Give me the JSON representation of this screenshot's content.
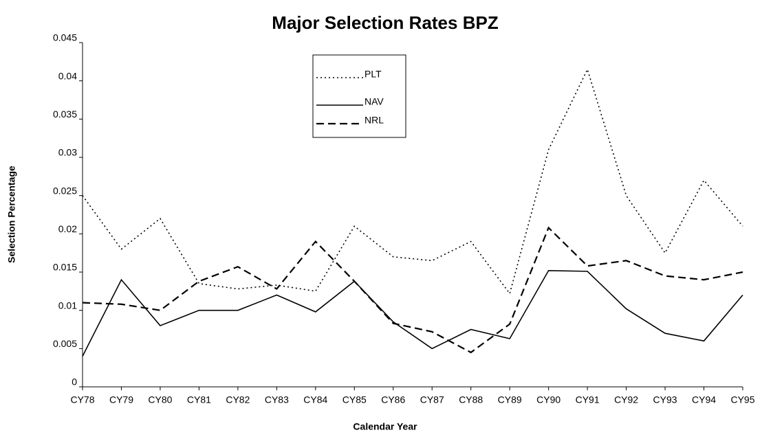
{
  "chart_data": {
    "type": "line",
    "title": "Major Selection Rates BPZ",
    "x_label": "Calendar Year",
    "y_label": "Selection Percentage",
    "categories": [
      "CY78",
      "CY79",
      "CY80",
      "CY81",
      "CY82",
      "CY83",
      "CY84",
      "CY85",
      "CY86",
      "CY87",
      "CY88",
      "CY89",
      "CY90",
      "CY91",
      "CY92",
      "CY93",
      "CY94",
      "CY95"
    ],
    "series": [
      {
        "name": "PLT",
        "color": "#000000",
        "dash": "dotted",
        "values": [
          0.025,
          0.018,
          0.022,
          0.0135,
          0.0128,
          0.0133,
          0.0125,
          0.021,
          0.017,
          0.0165,
          0.019,
          0.0122,
          0.031,
          0.0415,
          0.025,
          0.0175,
          0.027,
          0.021
        ]
      },
      {
        "name": "NAV",
        "color": "#000000",
        "dash": "solid",
        "values": [
          0.004,
          0.014,
          0.008,
          0.01,
          0.01,
          0.012,
          0.0098,
          0.0138,
          0.0085,
          0.005,
          0.0075,
          0.0063,
          0.0152,
          0.0151,
          0.0102,
          0.007,
          0.006,
          0.012
        ]
      },
      {
        "name": "NRL",
        "color": "#000000",
        "dash": "dashed",
        "values": [
          0.011,
          0.0108,
          0.01,
          0.0138,
          0.0157,
          0.0128,
          0.019,
          0.0138,
          0.0083,
          0.0072,
          0.0045,
          0.0082,
          0.0208,
          0.0158,
          0.0165,
          0.0145,
          0.014,
          0.015
        ]
      }
    ],
    "ylim": [
      0,
      0.045
    ],
    "yticks": [
      0,
      0.005,
      0.01,
      0.015,
      0.02,
      0.025,
      0.03,
      0.035,
      0.04,
      0.045
    ],
    "grid": false
  }
}
